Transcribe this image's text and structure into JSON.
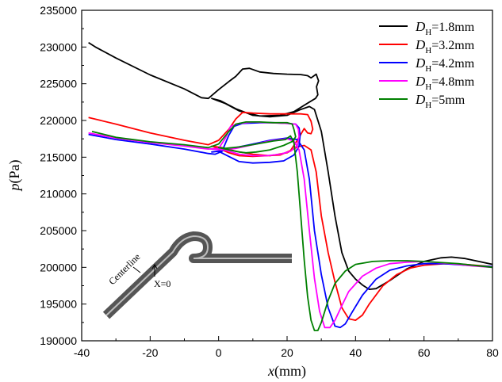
{
  "chart_data": {
    "type": "line",
    "xlabel_var": "x",
    "xlabel_unit": "(mm)",
    "ylabel_var": "p",
    "ylabel_unit": "(Pa)",
    "xlim": [
      -40,
      80
    ],
    "ylim": [
      190000,
      235000
    ],
    "xticks": [
      -40,
      -20,
      0,
      20,
      40,
      60,
      80
    ],
    "yticks": [
      190000,
      195000,
      200000,
      205000,
      210000,
      215000,
      220000,
      225000,
      230000,
      235000
    ],
    "grid": false,
    "legend_position": "top-right",
    "inset": {
      "centerline_label": "Centerline",
      "x0_label": "X=0"
    },
    "series": [
      {
        "legend_var": "D",
        "legend_sub": "H",
        "legend_value": "=1.8mm",
        "color": "#000000",
        "points": [
          [
            -38,
            230600
          ],
          [
            -36,
            230000
          ],
          [
            -30,
            228500
          ],
          [
            -20,
            226200
          ],
          [
            -10,
            224300
          ],
          [
            -5,
            223100
          ],
          [
            -3,
            223000
          ],
          [
            0,
            224200
          ],
          [
            3,
            225300
          ],
          [
            5,
            226000
          ],
          [
            7,
            227000
          ],
          [
            9,
            227100
          ],
          [
            12,
            226600
          ],
          [
            16,
            226400
          ],
          [
            20,
            226300
          ],
          [
            24,
            226250
          ],
          [
            26,
            226100
          ],
          [
            27,
            225800
          ],
          [
            28.5,
            226300
          ],
          [
            29.2,
            225400
          ],
          [
            28.6,
            224600
          ],
          [
            29.0,
            223500
          ],
          [
            28.3,
            223000
          ],
          [
            26.5,
            222500
          ],
          [
            22,
            221200
          ],
          [
            18,
            220700
          ],
          [
            12,
            220600
          ],
          [
            6,
            221300
          ],
          [
            2,
            222300
          ],
          [
            -2,
            223000
          ],
          [
            0.5,
            222700
          ],
          [
            5,
            221600
          ],
          [
            10,
            220700
          ],
          [
            15,
            220500
          ],
          [
            20,
            220700
          ],
          [
            24,
            221500
          ],
          [
            26.5,
            221900
          ],
          [
            28,
            221500
          ],
          [
            30,
            218500
          ],
          [
            32,
            213000
          ],
          [
            34,
            207000
          ],
          [
            36,
            202000
          ],
          [
            38,
            199500
          ],
          [
            40,
            198400
          ],
          [
            42,
            197600
          ],
          [
            44,
            197000
          ],
          [
            46,
            197100
          ],
          [
            50,
            198200
          ],
          [
            55,
            199800
          ],
          [
            60,
            200800
          ],
          [
            65,
            201300
          ],
          [
            68,
            201400
          ],
          [
            72,
            201200
          ],
          [
            76,
            200800
          ],
          [
            80,
            200400
          ]
        ]
      },
      {
        "legend_var": "D",
        "legend_sub": "H",
        "legend_value": "=3.2mm",
        "color": "#ff0000",
        "points": [
          [
            -38,
            220400
          ],
          [
            -30,
            219500
          ],
          [
            -20,
            218300
          ],
          [
            -10,
            217300
          ],
          [
            -3,
            216700
          ],
          [
            0,
            217300
          ],
          [
            3,
            218800
          ],
          [
            5,
            220200
          ],
          [
            7,
            221100
          ],
          [
            10,
            221000
          ],
          [
            15,
            220900
          ],
          [
            20,
            220900
          ],
          [
            24,
            220900
          ],
          [
            26,
            220800
          ],
          [
            27,
            219900
          ],
          [
            27.5,
            218800
          ],
          [
            27,
            218200
          ],
          [
            26,
            218300
          ],
          [
            25,
            218900
          ],
          [
            23,
            217300
          ],
          [
            21,
            215900
          ],
          [
            18,
            215300
          ],
          [
            14,
            215200
          ],
          [
            10,
            215100
          ],
          [
            6,
            215200
          ],
          [
            3,
            215600
          ],
          [
            0,
            216200
          ],
          [
            -2,
            216500
          ],
          [
            1,
            216300
          ],
          [
            5,
            215800
          ],
          [
            10,
            215400
          ],
          [
            15,
            215200
          ],
          [
            20,
            215600
          ],
          [
            23,
            216400
          ],
          [
            25,
            216600
          ],
          [
            27,
            216000
          ],
          [
            28.5,
            213000
          ],
          [
            30,
            207000
          ],
          [
            32,
            202000
          ],
          [
            34,
            198000
          ],
          [
            36,
            194500
          ],
          [
            38,
            193000
          ],
          [
            40,
            192800
          ],
          [
            42,
            193500
          ],
          [
            44,
            195000
          ],
          [
            48,
            197500
          ],
          [
            52,
            199000
          ],
          [
            56,
            199900
          ],
          [
            60,
            200300
          ],
          [
            66,
            200500
          ],
          [
            72,
            200400
          ],
          [
            80,
            200100
          ]
        ]
      },
      {
        "legend_var": "D",
        "legend_sub": "H",
        "legend_value": "=4.2mm",
        "color": "#0000ff",
        "points": [
          [
            -38,
            218100
          ],
          [
            -30,
            217400
          ],
          [
            -20,
            216800
          ],
          [
            -10,
            216100
          ],
          [
            -3,
            215500
          ],
          [
            -1,
            215400
          ],
          [
            1,
            215800
          ],
          [
            3,
            218000
          ],
          [
            4.5,
            219200
          ],
          [
            7,
            219600
          ],
          [
            12,
            219700
          ],
          [
            16,
            219700
          ],
          [
            20,
            219600
          ],
          [
            22.5,
            219500
          ],
          [
            23.5,
            219000
          ],
          [
            23.8,
            218000
          ],
          [
            23.5,
            216500
          ],
          [
            22,
            215300
          ],
          [
            19,
            214500
          ],
          [
            15,
            214300
          ],
          [
            10,
            214200
          ],
          [
            6,
            214400
          ],
          [
            3,
            215100
          ],
          [
            0,
            215800
          ],
          [
            -2,
            215700
          ],
          [
            1,
            215900
          ],
          [
            5,
            216300
          ],
          [
            10,
            216800
          ],
          [
            15,
            217300
          ],
          [
            20,
            217600
          ],
          [
            23,
            217400
          ],
          [
            25,
            216000
          ],
          [
            26.5,
            212000
          ],
          [
            28,
            205000
          ],
          [
            30,
            199000
          ],
          [
            32,
            194500
          ],
          [
            34,
            192000
          ],
          [
            35.5,
            191800
          ],
          [
            37,
            192300
          ],
          [
            39,
            193900
          ],
          [
            42,
            196200
          ],
          [
            46,
            198400
          ],
          [
            50,
            199600
          ],
          [
            55,
            200200
          ],
          [
            60,
            200500
          ],
          [
            66,
            200500
          ],
          [
            72,
            200300
          ],
          [
            80,
            200100
          ]
        ]
      },
      {
        "legend_var": "D",
        "legend_sub": "H",
        "legend_value": "=4.8mm",
        "color": "#ff00ff",
        "points": [
          [
            -38,
            218300
          ],
          [
            -30,
            217600
          ],
          [
            -20,
            217000
          ],
          [
            -10,
            216500
          ],
          [
            -3,
            216100
          ],
          [
            0,
            216200
          ],
          [
            2,
            217600
          ],
          [
            3.5,
            219200
          ],
          [
            6,
            219600
          ],
          [
            10,
            219800
          ],
          [
            15,
            219700
          ],
          [
            20,
            219600
          ],
          [
            22.5,
            219500
          ],
          [
            23.3,
            218800
          ],
          [
            23.5,
            217800
          ],
          [
            23,
            216600
          ],
          [
            21,
            215800
          ],
          [
            18,
            215400
          ],
          [
            14,
            215200
          ],
          [
            10,
            215200
          ],
          [
            6,
            215400
          ],
          [
            3,
            215800
          ],
          [
            0,
            216200
          ],
          [
            -2,
            216100
          ],
          [
            1,
            216000
          ],
          [
            5,
            216200
          ],
          [
            10,
            216700
          ],
          [
            15,
            217200
          ],
          [
            20,
            217500
          ],
          [
            22,
            217200
          ],
          [
            23.5,
            216000
          ],
          [
            25,
            212000
          ],
          [
            26.5,
            205000
          ],
          [
            28,
            198500
          ],
          [
            29.5,
            194000
          ],
          [
            31,
            191800
          ],
          [
            32.5,
            191800
          ],
          [
            34,
            192800
          ],
          [
            36,
            194800
          ],
          [
            38,
            196700
          ],
          [
            42,
            198800
          ],
          [
            46,
            199900
          ],
          [
            50,
            200500
          ],
          [
            55,
            200700
          ],
          [
            60,
            200800
          ],
          [
            68,
            200500
          ],
          [
            74,
            200200
          ],
          [
            80,
            200000
          ]
        ]
      },
      {
        "legend_var": "D",
        "legend_sub": "H",
        "legend_value": "=5mm",
        "color": "#008000",
        "points": [
          [
            -37,
            218500
          ],
          [
            -30,
            217700
          ],
          [
            -20,
            217100
          ],
          [
            -10,
            216700
          ],
          [
            -3,
            216300
          ],
          [
            0,
            216800
          ],
          [
            3,
            218500
          ],
          [
            5,
            219500
          ],
          [
            8,
            219800
          ],
          [
            12,
            219800
          ],
          [
            16,
            219700
          ],
          [
            20,
            219700
          ],
          [
            21.5,
            219500
          ],
          [
            22,
            218800
          ],
          [
            22.5,
            217800
          ],
          [
            21.8,
            217200
          ],
          [
            19,
            216600
          ],
          [
            15,
            216000
          ],
          [
            11,
            215700
          ],
          [
            8,
            215600
          ],
          [
            6,
            215700
          ],
          [
            4,
            215900
          ],
          [
            2,
            216100
          ],
          [
            0,
            216300
          ],
          [
            2,
            216200
          ],
          [
            6,
            216400
          ],
          [
            11,
            216800
          ],
          [
            16,
            217200
          ],
          [
            19.5,
            217400
          ],
          [
            21,
            217900
          ],
          [
            22,
            217000
          ],
          [
            23,
            213000
          ],
          [
            24,
            207000
          ],
          [
            25,
            201000
          ],
          [
            26,
            196000
          ],
          [
            27,
            192800
          ],
          [
            28,
            191400
          ],
          [
            29,
            191400
          ],
          [
            30,
            192500
          ],
          [
            32,
            195500
          ],
          [
            34,
            197800
          ],
          [
            37,
            199500
          ],
          [
            40,
            200400
          ],
          [
            45,
            200800
          ],
          [
            50,
            200900
          ],
          [
            55,
            200900
          ],
          [
            60,
            200800
          ],
          [
            70,
            200500
          ],
          [
            80,
            200000
          ]
        ]
      }
    ]
  }
}
